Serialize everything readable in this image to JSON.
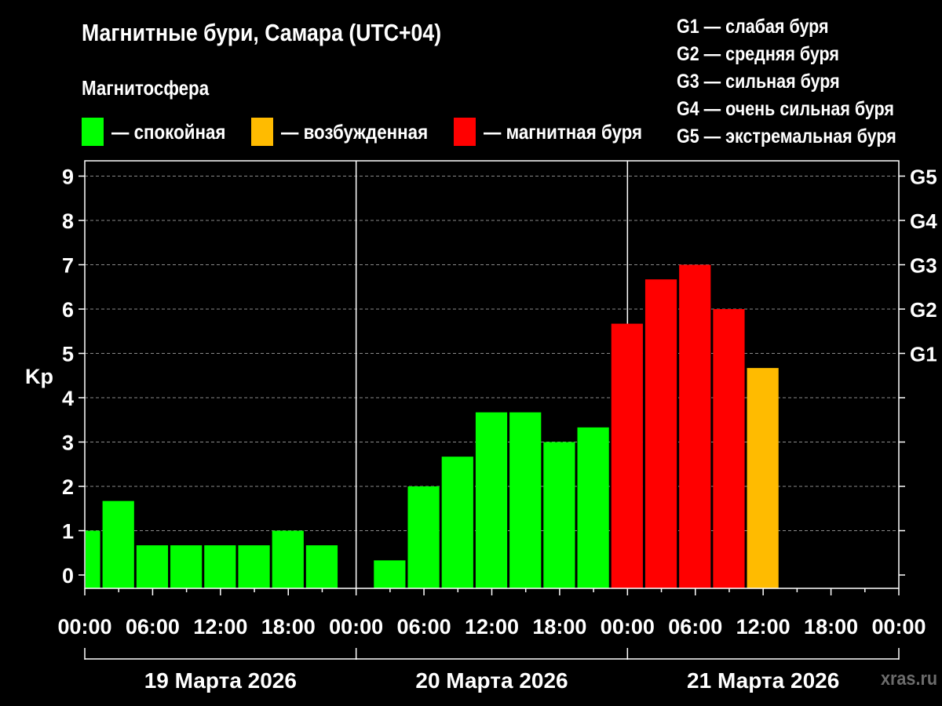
{
  "chart_data": {
    "type": "bar",
    "title": "Магнитные бури, Самара (UTC+04)",
    "subtitle": "Магнитосфера",
    "ylabel": "Kp",
    "ylim": [
      0,
      9
    ],
    "y_ticks": [
      "0",
      "1",
      "2",
      "3",
      "4",
      "5",
      "6",
      "7",
      "8",
      "9"
    ],
    "y2_ticks": [
      "G1",
      "G2",
      "G3",
      "G4",
      "G5"
    ],
    "x_tick_labels": [
      "00:00",
      "06:00",
      "12:00",
      "18:00",
      "00:00",
      "06:00",
      "12:00",
      "18:00",
      "00:00",
      "06:00",
      "12:00",
      "18:00",
      "00:00"
    ],
    "days": [
      "19 Марта 2026",
      "20 Марта 2026",
      "21 Марта 2026"
    ],
    "grid": true,
    "legend": [
      {
        "label": "— спокойная",
        "color": "#00ff00"
      },
      {
        "label": "— возбужденная",
        "color": "#ffbb00"
      },
      {
        "label": "— магнитная буря",
        "color": "#ff0000"
      }
    ],
    "storm_scale": [
      "G1 — слабая буря",
      "G2 — средняя буря",
      "G3 — сильная буря",
      "G4 — очень сильная буря",
      "G5 — экстремальная буря"
    ],
    "series": [
      {
        "bars": [
          {
            "start_hour": 0,
            "end_hour": 1.5,
            "value": 1.0,
            "color": "#00ff00"
          },
          {
            "start_hour": 1.5,
            "end_hour": 4.5,
            "value": 1.67,
            "color": "#00ff00"
          },
          {
            "start_hour": 4.5,
            "end_hour": 7.5,
            "value": 0.67,
            "color": "#00ff00"
          },
          {
            "start_hour": 7.5,
            "end_hour": 10.5,
            "value": 0.67,
            "color": "#00ff00"
          },
          {
            "start_hour": 10.5,
            "end_hour": 13.5,
            "value": 0.67,
            "color": "#00ff00"
          },
          {
            "start_hour": 13.5,
            "end_hour": 16.5,
            "value": 0.67,
            "color": "#00ff00"
          },
          {
            "start_hour": 16.5,
            "end_hour": 19.5,
            "value": 1.0,
            "color": "#00ff00"
          },
          {
            "start_hour": 19.5,
            "end_hour": 22.5,
            "value": 0.67,
            "color": "#00ff00"
          },
          {
            "start_hour": 25.5,
            "end_hour": 28.5,
            "value": 0.33,
            "color": "#00ff00"
          },
          {
            "start_hour": 28.5,
            "end_hour": 31.5,
            "value": 2.0,
            "color": "#00ff00"
          },
          {
            "start_hour": 31.5,
            "end_hour": 34.5,
            "value": 2.67,
            "color": "#00ff00"
          },
          {
            "start_hour": 34.5,
            "end_hour": 37.5,
            "value": 3.67,
            "color": "#00ff00"
          },
          {
            "start_hour": 37.5,
            "end_hour": 40.5,
            "value": 3.67,
            "color": "#00ff00"
          },
          {
            "start_hour": 40.5,
            "end_hour": 43.5,
            "value": 3.0,
            "color": "#00ff00"
          },
          {
            "start_hour": 43.5,
            "end_hour": 46.5,
            "value": 3.33,
            "color": "#00ff00"
          },
          {
            "start_hour": 46.5,
            "end_hour": 49.5,
            "value": 5.67,
            "color": "#ff0000"
          },
          {
            "start_hour": 49.5,
            "end_hour": 52.5,
            "value": 6.67,
            "color": "#ff0000"
          },
          {
            "start_hour": 52.5,
            "end_hour": 55.5,
            "value": 7.0,
            "color": "#ff0000"
          },
          {
            "start_hour": 55.5,
            "end_hour": 58.5,
            "value": 6.0,
            "color": "#ff0000"
          },
          {
            "start_hour": 58.5,
            "end_hour": 61.5,
            "value": 4.67,
            "color": "#ffbb00"
          }
        ]
      }
    ],
    "watermark": "xras.ru"
  }
}
